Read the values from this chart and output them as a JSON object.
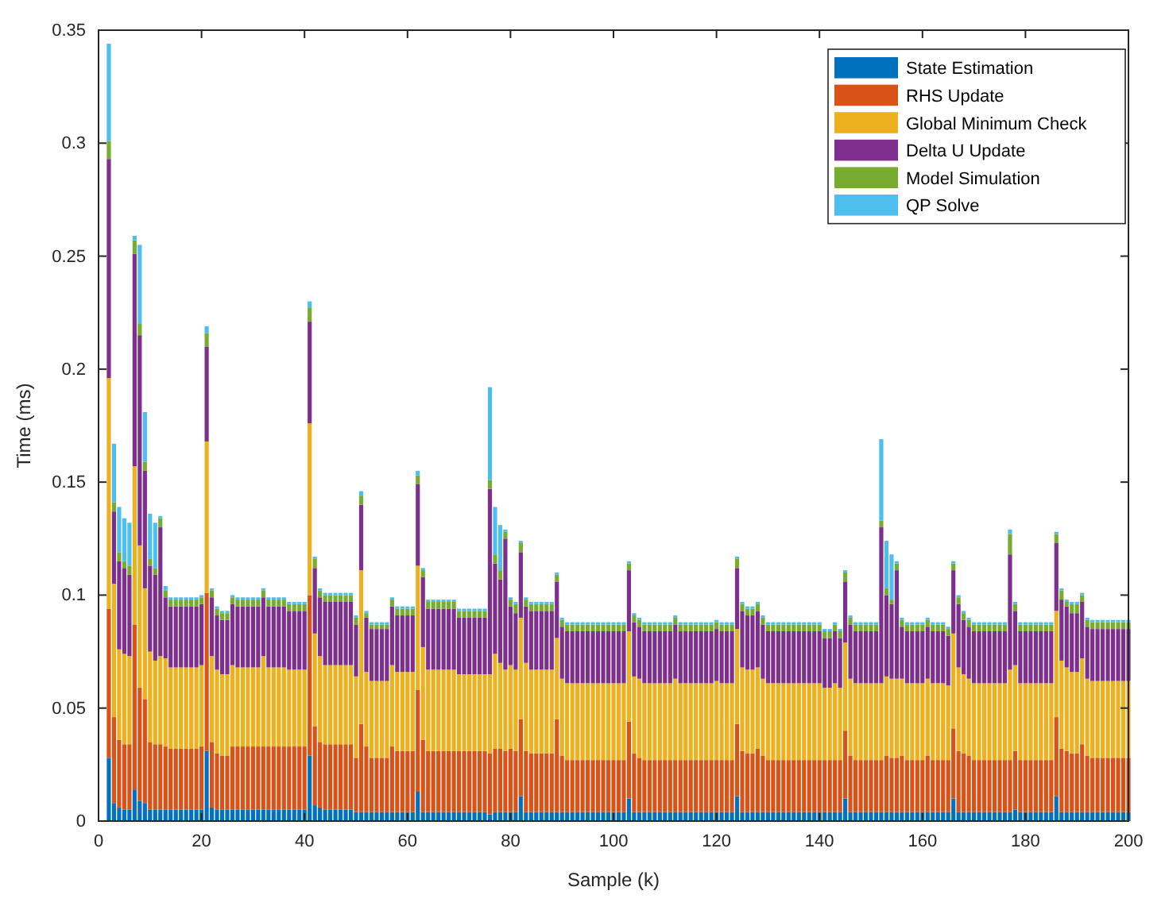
{
  "chart_data": {
    "type": "bar",
    "stacked": true,
    "xlabel": "Sample (k)",
    "ylabel": "Time (ms)",
    "xlim": [
      0,
      200
    ],
    "xticks": [
      0,
      20,
      40,
      60,
      80,
      100,
      120,
      140,
      160,
      180,
      200
    ],
    "ylim": [
      0,
      0.35
    ],
    "yticks": [
      0,
      0.05,
      0.1,
      0.15,
      0.2,
      0.25,
      0.3,
      0.35
    ],
    "legend": "top right",
    "x": [
      2,
      3,
      4,
      5,
      6,
      7,
      8,
      9,
      10,
      11,
      12,
      13,
      14,
      15,
      16,
      17,
      18,
      19,
      20,
      21,
      22,
      23,
      24,
      25,
      26,
      27,
      28,
      29,
      30,
      31,
      32,
      33,
      34,
      35,
      36,
      37,
      38,
      39,
      40,
      41,
      42,
      43,
      44,
      45,
      46,
      47,
      48,
      49,
      50,
      51,
      52,
      53,
      54,
      55,
      56,
      57,
      58,
      59,
      60,
      61,
      62,
      63,
      64,
      65,
      66,
      67,
      68,
      69,
      70,
      71,
      72,
      73,
      74,
      75,
      76,
      77,
      78,
      79,
      80,
      81,
      82,
      83,
      84,
      85,
      86,
      87,
      88,
      89,
      90,
      91,
      92,
      93,
      94,
      95,
      96,
      97,
      98,
      99,
      100,
      101,
      102,
      103,
      104,
      105,
      106,
      107,
      108,
      109,
      110,
      111,
      112,
      113,
      114,
      115,
      116,
      117,
      118,
      119,
      120,
      121,
      122,
      123,
      124,
      125,
      126,
      127,
      128,
      129,
      130,
      131,
      132,
      133,
      134,
      135,
      136,
      137,
      138,
      139,
      140,
      141,
      142,
      143,
      144,
      145,
      146,
      147,
      148,
      149,
      150,
      151,
      152,
      153,
      154,
      155,
      156,
      157,
      158,
      159,
      160,
      161,
      162,
      163,
      164,
      165,
      166,
      167,
      168,
      169,
      170,
      171,
      172,
      173,
      174,
      175,
      176,
      177,
      178,
      179,
      180,
      181,
      182,
      183,
      184,
      185,
      186,
      187,
      188,
      189,
      190,
      191,
      192,
      193,
      194,
      195,
      196,
      197,
      198,
      199,
      200
    ],
    "series": [
      {
        "name": "State Estimation",
        "color": "#0072bd",
        "values": [
          0.028,
          0.008,
          0.006,
          0.005,
          0.005,
          0.014,
          0.009,
          0.008,
          0.005,
          0.005,
          0.005,
          0.005,
          0.005,
          0.005,
          0.005,
          0.005,
          0.005,
          0.005,
          0.005,
          0.031,
          0.006,
          0.005,
          0.005,
          0.005,
          0.005,
          0.005,
          0.005,
          0.005,
          0.005,
          0.005,
          0.005,
          0.005,
          0.005,
          0.005,
          0.005,
          0.005,
          0.005,
          0.005,
          0.005,
          0.029,
          0.007,
          0.006,
          0.005,
          0.005,
          0.005,
          0.005,
          0.005,
          0.005,
          0.004,
          0.004,
          0.004,
          0.004,
          0.004,
          0.004,
          0.004,
          0.004,
          0.004,
          0.004,
          0.004,
          0.004,
          0.013,
          0.004,
          0.004,
          0.004,
          0.004,
          0.004,
          0.004,
          0.004,
          0.004,
          0.004,
          0.004,
          0.004,
          0.004,
          0.004,
          0.003,
          0.004,
          0.004,
          0.004,
          0.004,
          0.004,
          0.011,
          0.004,
          0.004,
          0.004,
          0.004,
          0.004,
          0.004,
          0.004,
          0.004,
          0.004,
          0.004,
          0.004,
          0.004,
          0.004,
          0.004,
          0.004,
          0.004,
          0.004,
          0.004,
          0.004,
          0.004,
          0.01,
          0.004,
          0.004,
          0.004,
          0.004,
          0.004,
          0.004,
          0.004,
          0.004,
          0.004,
          0.004,
          0.004,
          0.004,
          0.004,
          0.004,
          0.004,
          0.004,
          0.004,
          0.004,
          0.004,
          0.004,
          0.011,
          0.004,
          0.004,
          0.004,
          0.004,
          0.004,
          0.004,
          0.004,
          0.004,
          0.004,
          0.004,
          0.004,
          0.004,
          0.004,
          0.004,
          0.004,
          0.004,
          0.004,
          0.004,
          0.004,
          0.004,
          0.01,
          0.004,
          0.004,
          0.004,
          0.004,
          0.004,
          0.004,
          0.004,
          0.004,
          0.004,
          0.004,
          0.004,
          0.004,
          0.004,
          0.004,
          0.004,
          0.004,
          0.004,
          0.004,
          0.004,
          0.004,
          0.01,
          0.004,
          0.004,
          0.004,
          0.004,
          0.004,
          0.004,
          0.004,
          0.004,
          0.004,
          0.004,
          0.004,
          0.005,
          0.004,
          0.004,
          0.004,
          0.004,
          0.004,
          0.004,
          0.004,
          0.011,
          0.004,
          0.004,
          0.004,
          0.004,
          0.004,
          0.004,
          0.004,
          0.004,
          0.004,
          0.004,
          0.004,
          0.004,
          0.004,
          0.004
        ]
      },
      {
        "name": "RHS Update",
        "color": "#d95319",
        "values": [
          0.066,
          0.038,
          0.03,
          0.029,
          0.029,
          0.073,
          0.05,
          0.046,
          0.03,
          0.029,
          0.029,
          0.028,
          0.027,
          0.027,
          0.027,
          0.027,
          0.027,
          0.027,
          0.028,
          0.07,
          0.029,
          0.025,
          0.024,
          0.024,
          0.028,
          0.028,
          0.028,
          0.028,
          0.028,
          0.028,
          0.028,
          0.028,
          0.028,
          0.028,
          0.028,
          0.028,
          0.028,
          0.028,
          0.028,
          0.071,
          0.035,
          0.029,
          0.029,
          0.029,
          0.029,
          0.029,
          0.029,
          0.029,
          0.024,
          0.039,
          0.029,
          0.024,
          0.024,
          0.024,
          0.024,
          0.029,
          0.027,
          0.027,
          0.027,
          0.027,
          0.045,
          0.032,
          0.027,
          0.027,
          0.027,
          0.027,
          0.027,
          0.027,
          0.027,
          0.027,
          0.027,
          0.027,
          0.027,
          0.027,
          0.027,
          0.028,
          0.028,
          0.027,
          0.028,
          0.027,
          0.034,
          0.027,
          0.026,
          0.026,
          0.026,
          0.026,
          0.026,
          0.041,
          0.025,
          0.023,
          0.023,
          0.023,
          0.023,
          0.023,
          0.023,
          0.023,
          0.023,
          0.023,
          0.023,
          0.023,
          0.023,
          0.034,
          0.026,
          0.024,
          0.023,
          0.023,
          0.023,
          0.023,
          0.023,
          0.023,
          0.023,
          0.023,
          0.023,
          0.023,
          0.023,
          0.023,
          0.023,
          0.023,
          0.023,
          0.023,
          0.023,
          0.023,
          0.032,
          0.027,
          0.026,
          0.026,
          0.028,
          0.025,
          0.023,
          0.023,
          0.023,
          0.023,
          0.023,
          0.023,
          0.023,
          0.023,
          0.023,
          0.023,
          0.023,
          0.023,
          0.023,
          0.023,
          0.023,
          0.03,
          0.025,
          0.023,
          0.023,
          0.023,
          0.023,
          0.023,
          0.023,
          0.025,
          0.024,
          0.024,
          0.025,
          0.023,
          0.023,
          0.023,
          0.023,
          0.025,
          0.023,
          0.023,
          0.023,
          0.023,
          0.031,
          0.027,
          0.026,
          0.025,
          0.023,
          0.023,
          0.023,
          0.023,
          0.023,
          0.023,
          0.023,
          0.023,
          0.026,
          0.023,
          0.023,
          0.023,
          0.023,
          0.023,
          0.023,
          0.023,
          0.035,
          0.028,
          0.027,
          0.026,
          0.026,
          0.03,
          0.025,
          0.024,
          0.024,
          0.024,
          0.024,
          0.024,
          0.024,
          0.024,
          0.024
        ]
      },
      {
        "name": "Global Minimum Check",
        "color": "#edb120",
        "values": [
          0.102,
          0.059,
          0.04,
          0.04,
          0.039,
          0.07,
          0.063,
          0.049,
          0.04,
          0.037,
          0.039,
          0.039,
          0.036,
          0.036,
          0.036,
          0.036,
          0.036,
          0.036,
          0.036,
          0.067,
          0.038,
          0.037,
          0.036,
          0.036,
          0.036,
          0.035,
          0.035,
          0.035,
          0.035,
          0.035,
          0.04,
          0.035,
          0.035,
          0.035,
          0.035,
          0.034,
          0.034,
          0.034,
          0.034,
          0.076,
          0.041,
          0.038,
          0.035,
          0.035,
          0.035,
          0.035,
          0.035,
          0.035,
          0.036,
          0.068,
          0.033,
          0.034,
          0.034,
          0.034,
          0.034,
          0.036,
          0.035,
          0.035,
          0.035,
          0.035,
          0.055,
          0.041,
          0.036,
          0.036,
          0.036,
          0.036,
          0.036,
          0.036,
          0.034,
          0.034,
          0.034,
          0.034,
          0.034,
          0.034,
          0.035,
          0.042,
          0.038,
          0.036,
          0.037,
          0.036,
          0.045,
          0.039,
          0.037,
          0.037,
          0.037,
          0.037,
          0.037,
          0.036,
          0.034,
          0.034,
          0.034,
          0.034,
          0.034,
          0.034,
          0.034,
          0.034,
          0.034,
          0.034,
          0.034,
          0.034,
          0.034,
          0.04,
          0.034,
          0.035,
          0.034,
          0.034,
          0.034,
          0.034,
          0.034,
          0.034,
          0.036,
          0.034,
          0.034,
          0.034,
          0.034,
          0.034,
          0.034,
          0.034,
          0.035,
          0.034,
          0.034,
          0.034,
          0.042,
          0.037,
          0.037,
          0.037,
          0.036,
          0.034,
          0.034,
          0.034,
          0.034,
          0.034,
          0.034,
          0.034,
          0.034,
          0.034,
          0.034,
          0.034,
          0.034,
          0.032,
          0.032,
          0.034,
          0.032,
          0.039,
          0.034,
          0.034,
          0.034,
          0.034,
          0.034,
          0.034,
          0.034,
          0.035,
          0.035,
          0.035,
          0.034,
          0.034,
          0.034,
          0.034,
          0.034,
          0.034,
          0.034,
          0.034,
          0.034,
          0.033,
          0.042,
          0.037,
          0.035,
          0.034,
          0.034,
          0.034,
          0.034,
          0.034,
          0.034,
          0.034,
          0.034,
          0.04,
          0.038,
          0.034,
          0.034,
          0.034,
          0.034,
          0.034,
          0.034,
          0.034,
          0.047,
          0.039,
          0.037,
          0.036,
          0.036,
          0.038,
          0.034,
          0.034,
          0.034,
          0.034,
          0.034,
          0.034,
          0.034,
          0.034,
          0.034
        ]
      },
      {
        "name": "Delta U Update",
        "color": "#7e2f8e",
        "values": [
          0.097,
          0.032,
          0.039,
          0.038,
          0.036,
          0.094,
          0.093,
          0.052,
          0.038,
          0.038,
          0.057,
          0.027,
          0.027,
          0.027,
          0.027,
          0.027,
          0.027,
          0.027,
          0.027,
          0.042,
          0.026,
          0.024,
          0.024,
          0.024,
          0.027,
          0.027,
          0.027,
          0.027,
          0.027,
          0.027,
          0.026,
          0.027,
          0.027,
          0.027,
          0.027,
          0.026,
          0.026,
          0.026,
          0.026,
          0.045,
          0.029,
          0.026,
          0.028,
          0.028,
          0.028,
          0.028,
          0.028,
          0.028,
          0.023,
          0.029,
          0.024,
          0.023,
          0.023,
          0.023,
          0.023,
          0.026,
          0.025,
          0.025,
          0.025,
          0.025,
          0.036,
          0.031,
          0.027,
          0.027,
          0.027,
          0.027,
          0.027,
          0.027,
          0.025,
          0.025,
          0.025,
          0.025,
          0.025,
          0.025,
          0.082,
          0.04,
          0.037,
          0.058,
          0.026,
          0.025,
          0.029,
          0.025,
          0.026,
          0.026,
          0.026,
          0.026,
          0.026,
          0.025,
          0.023,
          0.023,
          0.023,
          0.023,
          0.023,
          0.023,
          0.023,
          0.023,
          0.023,
          0.023,
          0.023,
          0.023,
          0.023,
          0.027,
          0.024,
          0.023,
          0.023,
          0.023,
          0.023,
          0.023,
          0.023,
          0.023,
          0.024,
          0.023,
          0.023,
          0.023,
          0.023,
          0.023,
          0.023,
          0.023,
          0.023,
          0.023,
          0.023,
          0.023,
          0.027,
          0.025,
          0.024,
          0.024,
          0.025,
          0.024,
          0.023,
          0.023,
          0.023,
          0.023,
          0.023,
          0.023,
          0.023,
          0.023,
          0.023,
          0.023,
          0.023,
          0.022,
          0.022,
          0.023,
          0.022,
          0.027,
          0.024,
          0.023,
          0.023,
          0.023,
          0.023,
          0.023,
          0.069,
          0.036,
          0.033,
          0.048,
          0.023,
          0.023,
          0.023,
          0.023,
          0.023,
          0.023,
          0.023,
          0.023,
          0.023,
          0.022,
          0.028,
          0.028,
          0.024,
          0.023,
          0.023,
          0.023,
          0.023,
          0.023,
          0.023,
          0.023,
          0.023,
          0.051,
          0.024,
          0.023,
          0.023,
          0.023,
          0.023,
          0.023,
          0.023,
          0.023,
          0.03,
          0.027,
          0.027,
          0.026,
          0.026,
          0.025,
          0.023,
          0.023,
          0.023,
          0.023,
          0.023,
          0.023,
          0.023,
          0.023,
          0.023
        ]
      },
      {
        "name": "Model Simulation",
        "color": "#77ac30",
        "values": [
          0.008,
          0.004,
          0.004,
          0.003,
          0.004,
          0.006,
          0.005,
          0.004,
          0.003,
          0.003,
          0.004,
          0.003,
          0.003,
          0.003,
          0.003,
          0.003,
          0.003,
          0.003,
          0.003,
          0.006,
          0.003,
          0.003,
          0.003,
          0.003,
          0.003,
          0.003,
          0.003,
          0.003,
          0.003,
          0.003,
          0.003,
          0.003,
          0.003,
          0.003,
          0.003,
          0.003,
          0.003,
          0.003,
          0.003,
          0.006,
          0.004,
          0.003,
          0.003,
          0.003,
          0.003,
          0.003,
          0.003,
          0.003,
          0.003,
          0.004,
          0.002,
          0.002,
          0.002,
          0.002,
          0.002,
          0.003,
          0.003,
          0.003,
          0.003,
          0.003,
          0.004,
          0.003,
          0.003,
          0.003,
          0.003,
          0.003,
          0.003,
          0.003,
          0.003,
          0.003,
          0.003,
          0.003,
          0.003,
          0.003,
          0.004,
          0.004,
          0.004,
          0.003,
          0.003,
          0.004,
          0.004,
          0.003,
          0.003,
          0.003,
          0.003,
          0.003,
          0.003,
          0.003,
          0.003,
          0.003,
          0.003,
          0.003,
          0.003,
          0.003,
          0.003,
          0.003,
          0.003,
          0.003,
          0.003,
          0.003,
          0.003,
          0.003,
          0.003,
          0.003,
          0.003,
          0.003,
          0.003,
          0.003,
          0.003,
          0.003,
          0.003,
          0.003,
          0.003,
          0.003,
          0.003,
          0.003,
          0.003,
          0.003,
          0.003,
          0.003,
          0.003,
          0.003,
          0.004,
          0.003,
          0.003,
          0.003,
          0.003,
          0.003,
          0.003,
          0.003,
          0.003,
          0.003,
          0.003,
          0.003,
          0.003,
          0.003,
          0.003,
          0.003,
          0.003,
          0.003,
          0.003,
          0.003,
          0.003,
          0.004,
          0.003,
          0.003,
          0.003,
          0.003,
          0.003,
          0.003,
          0.003,
          0.003,
          0.002,
          0.003,
          0.003,
          0.003,
          0.003,
          0.003,
          0.003,
          0.003,
          0.003,
          0.003,
          0.003,
          0.003,
          0.003,
          0.003,
          0.003,
          0.003,
          0.003,
          0.003,
          0.003,
          0.003,
          0.003,
          0.003,
          0.003,
          0.009,
          0.003,
          0.003,
          0.003,
          0.003,
          0.003,
          0.003,
          0.003,
          0.003,
          0.004,
          0.004,
          0.002,
          0.004,
          0.004,
          0.003,
          0.003,
          0.003,
          0.003,
          0.003,
          0.003,
          0.003,
          0.003,
          0.003,
          0.003
        ]
      },
      {
        "name": "QP Solve",
        "color": "#4dbeee",
        "values": [
          0.043,
          0.026,
          0.02,
          0.019,
          0.019,
          0.002,
          0.035,
          0.022,
          0.02,
          0.02,
          0.001,
          0.002,
          0.001,
          0.001,
          0.001,
          0.001,
          0.001,
          0.001,
          0.001,
          0.003,
          0.001,
          0.001,
          0.001,
          0.001,
          0.001,
          0.001,
          0.001,
          0.001,
          0.001,
          0.001,
          0.001,
          0.001,
          0.001,
          0.001,
          0.001,
          0.001,
          0.001,
          0.001,
          0.001,
          0.003,
          0.001,
          0.001,
          0.001,
          0.001,
          0.001,
          0.001,
          0.001,
          0.001,
          0.001,
          0.002,
          0.001,
          0.001,
          0.001,
          0.001,
          0.001,
          0.001,
          0.001,
          0.001,
          0.001,
          0.001,
          0.002,
          0.001,
          0.001,
          0.001,
          0.001,
          0.001,
          0.001,
          0.001,
          0.001,
          0.001,
          0.001,
          0.001,
          0.001,
          0.001,
          0.041,
          0.021,
          0.02,
          0.001,
          0.001,
          0.001,
          0.001,
          0.001,
          0.001,
          0.001,
          0.001,
          0.001,
          0.001,
          0.001,
          0.001,
          0.001,
          0.001,
          0.001,
          0.001,
          0.001,
          0.001,
          0.001,
          0.001,
          0.001,
          0.001,
          0.001,
          0.001,
          0.001,
          0.001,
          0.001,
          0.001,
          0.001,
          0.001,
          0.001,
          0.001,
          0.001,
          0.001,
          0.001,
          0.001,
          0.001,
          0.001,
          0.001,
          0.001,
          0.001,
          0.001,
          0.001,
          0.001,
          0.001,
          0.001,
          0.001,
          0.001,
          0.001,
          0.001,
          0.001,
          0.001,
          0.001,
          0.001,
          0.001,
          0.001,
          0.001,
          0.001,
          0.001,
          0.001,
          0.001,
          0.001,
          0.001,
          0.001,
          0.001,
          0.001,
          0.001,
          0.001,
          0.001,
          0.001,
          0.001,
          0.001,
          0.001,
          0.036,
          0.021,
          0.02,
          0.001,
          0.001,
          0.001,
          0.001,
          0.001,
          0.001,
          0.001,
          0.001,
          0.001,
          0.001,
          0.001,
          0.001,
          0.001,
          0.001,
          0.001,
          0.001,
          0.001,
          0.001,
          0.001,
          0.001,
          0.001,
          0.001,
          0.002,
          0.001,
          0.001,
          0.001,
          0.001,
          0.001,
          0.001,
          0.001,
          0.001,
          0.001,
          0.001,
          0.001,
          0.001,
          0.001,
          0.001,
          0.001,
          0.001,
          0.001,
          0.001,
          0.001,
          0.001,
          0.001,
          0.001,
          0.001
        ]
      }
    ]
  }
}
